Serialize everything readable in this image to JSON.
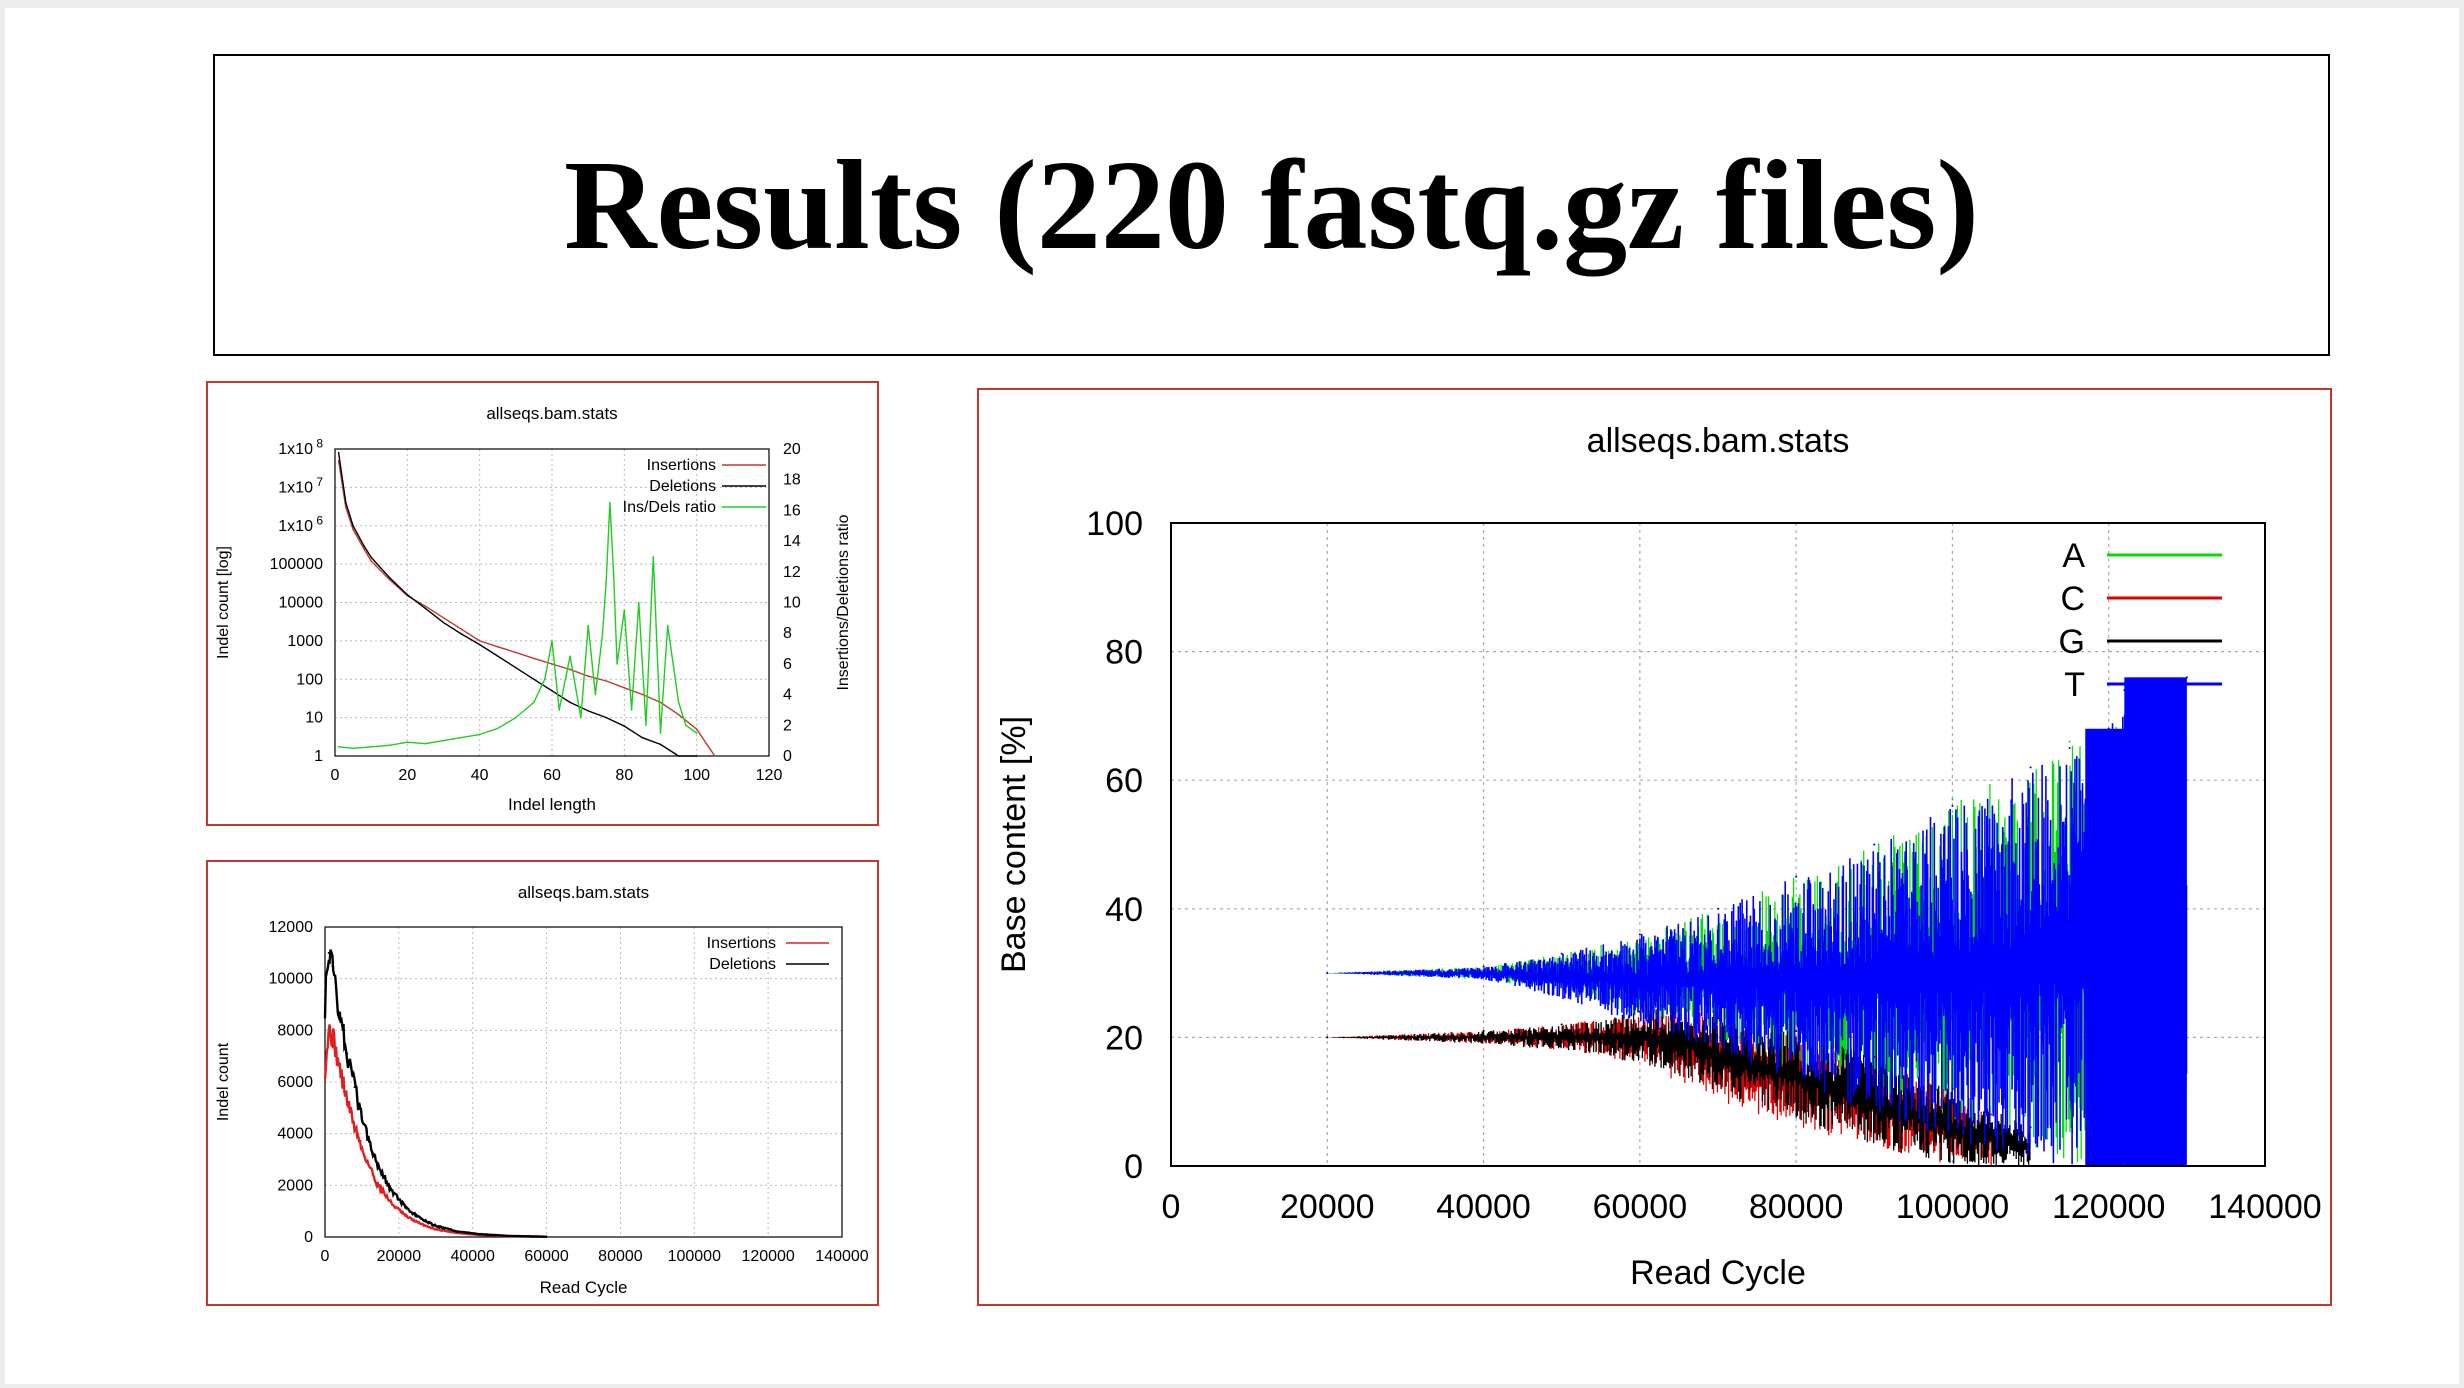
{
  "slide": {
    "title": "Results (220 fastq.gz files)"
  },
  "chart_data": [
    {
      "id": "indel-length",
      "type": "line",
      "title": "allseqs.bam.stats",
      "xlabel": "Indel length",
      "ylabel": "Indel count [log]",
      "y2label": "Insertions/Deletions ratio",
      "xlim": [
        0,
        120
      ],
      "ylim": [
        1,
        100000000
      ],
      "yscale": "log",
      "y2lim": [
        0,
        20
      ],
      "x_ticks": [
        "0",
        "20",
        "40",
        "60",
        "80",
        "100",
        "120"
      ],
      "y_ticks": [
        "1",
        "10",
        "100",
        "1000",
        "10000",
        "100000",
        "1x10^6",
        "1x10^7",
        "1x10^8"
      ],
      "y2_ticks": [
        "0",
        "2",
        "4",
        "6",
        "8",
        "10",
        "12",
        "14",
        "16",
        "18",
        "20"
      ],
      "grid": true,
      "legend_position": "top-right",
      "colors": {
        "Insertions": "#c0392b",
        "Deletions": "#000000",
        "Ins/Dels ratio": "#22cc22"
      },
      "series": [
        {
          "name": "Insertions",
          "axis": "left",
          "x": [
            1,
            3,
            5,
            8,
            10,
            15,
            20,
            25,
            30,
            35,
            40,
            45,
            50,
            55,
            60,
            65,
            70,
            75,
            80,
            85,
            90,
            95,
            100,
            105
          ],
          "values": [
            50000000,
            3000000,
            800000,
            250000,
            120000,
            40000,
            15000,
            8000,
            4000,
            2000,
            1000,
            700,
            500,
            350,
            250,
            180,
            120,
            90,
            60,
            40,
            25,
            12,
            5,
            1
          ]
        },
        {
          "name": "Deletions",
          "axis": "left",
          "x": [
            1,
            3,
            5,
            8,
            10,
            15,
            20,
            25,
            30,
            35,
            40,
            45,
            50,
            55,
            60,
            65,
            70,
            75,
            80,
            85,
            90,
            95,
            100
          ],
          "values": [
            80000000,
            4000000,
            1000000,
            300000,
            150000,
            45000,
            16000,
            7000,
            3000,
            1500,
            800,
            400,
            200,
            100,
            50,
            25,
            15,
            10,
            6,
            3,
            2,
            1,
            1
          ]
        },
        {
          "name": "Ins/Dels ratio",
          "axis": "right",
          "x": [
            1,
            5,
            10,
            15,
            20,
            25,
            30,
            35,
            40,
            45,
            50,
            55,
            58,
            60,
            62,
            65,
            68,
            70,
            72,
            74,
            75,
            76,
            77,
            78,
            80,
            82,
            84,
            86,
            88,
            90,
            92,
            95,
            97,
            100
          ],
          "values": [
            0.6,
            0.5,
            0.6,
            0.7,
            0.9,
            0.8,
            1.0,
            1.2,
            1.4,
            1.8,
            2.5,
            3.5,
            5.0,
            7.5,
            3.0,
            6.5,
            2.5,
            8.5,
            4.0,
            8.0,
            11.5,
            16.5,
            12.0,
            6.0,
            9.5,
            3.0,
            10.0,
            2.0,
            13.0,
            1.5,
            8.5,
            3.5,
            2.0,
            1.5
          ]
        }
      ]
    },
    {
      "id": "indel-read-cycle",
      "type": "line",
      "title": "allseqs.bam.stats",
      "xlabel": "Read Cycle",
      "ylabel": "Indel count",
      "xlim": [
        0,
        140000
      ],
      "ylim": [
        0,
        12000
      ],
      "x_ticks": [
        "0",
        "20000",
        "40000",
        "60000",
        "80000",
        "100000",
        "120000",
        "140000"
      ],
      "y_ticks": [
        "0",
        "2000",
        "4000",
        "6000",
        "8000",
        "10000",
        "12000"
      ],
      "grid": true,
      "legend_position": "top-right",
      "colors": {
        "Insertions": "#e02020",
        "Deletions": "#000000"
      },
      "series": [
        {
          "name": "Insertions",
          "x": [
            0,
            1000,
            2000,
            4000,
            6000,
            8000,
            10000,
            14000,
            18000,
            22000,
            26000,
            30000,
            36000,
            42000,
            50000,
            60000
          ],
          "values": [
            6500,
            8000,
            7800,
            6500,
            5300,
            4300,
            3400,
            2100,
            1300,
            800,
            500,
            300,
            150,
            80,
            30,
            10
          ]
        },
        {
          "name": "Deletions",
          "x": [
            0,
            1000,
            2000,
            4000,
            6000,
            8000,
            10000,
            14000,
            18000,
            22000,
            26000,
            30000,
            36000,
            42000,
            50000,
            60000
          ],
          "values": [
            9000,
            11000,
            10500,
            8700,
            7100,
            5800,
            4600,
            2900,
            1800,
            1100,
            700,
            430,
            210,
            110,
            40,
            10
          ]
        }
      ]
    },
    {
      "id": "base-content",
      "type": "line",
      "title": "allseqs.bam.stats",
      "xlabel": "Read Cycle",
      "ylabel": "Base content [%]",
      "xlim": [
        0,
        140000
      ],
      "ylim": [
        0,
        100
      ],
      "x_ticks": [
        "0",
        "20000",
        "40000",
        "60000",
        "80000",
        "100000",
        "120000",
        "140000"
      ],
      "y_ticks": [
        "0",
        "20",
        "40",
        "60",
        "80",
        "100"
      ],
      "grid": true,
      "legend_position": "top-right",
      "colors": {
        "A": "#00e000",
        "C": "#e00000",
        "G": "#000000",
        "T": "#0000ff"
      },
      "series": [
        {
          "name": "A",
          "x": [
            0,
            20000,
            40000,
            50000,
            60000,
            70000,
            80000,
            90000,
            100000,
            110000,
            115000,
            120000,
            125000,
            130000
          ],
          "values": [
            30,
            30,
            31,
            33,
            36,
            40,
            45,
            50,
            57,
            62,
            66,
            68,
            72,
            76
          ],
          "min": [
            30,
            30,
            29,
            27,
            23,
            19,
            14,
            9,
            5,
            2,
            0,
            0,
            0,
            0
          ]
        },
        {
          "name": "C",
          "x": [
            0,
            20000,
            40000,
            50000,
            60000,
            65000,
            70000,
            80000,
            90000,
            100000,
            105000
          ],
          "values": [
            20,
            20,
            21,
            22,
            24,
            25,
            23,
            20,
            16,
            12,
            8
          ],
          "min": [
            20,
            20,
            19,
            18,
            16,
            13,
            10,
            6,
            3,
            0,
            0
          ]
        },
        {
          "name": "G",
          "x": [
            0,
            20000,
            40000,
            50000,
            60000,
            65000,
            70000,
            80000,
            90000,
            100000,
            110000
          ],
          "values": [
            20,
            20,
            21,
            22,
            24,
            25,
            23,
            21,
            17,
            12,
            6
          ],
          "min": [
            20,
            20,
            19,
            18,
            16,
            14,
            11,
            7,
            3,
            0,
            0
          ]
        },
        {
          "name": "T",
          "x": [
            0,
            20000,
            40000,
            50000,
            60000,
            70000,
            80000,
            90000,
            100000,
            110000,
            115000,
            120000,
            122000,
            130000
          ],
          "values": [
            30,
            30,
            31,
            33,
            36,
            40,
            45,
            50,
            56,
            62,
            65,
            68,
            74,
            76
          ],
          "min": [
            30,
            30,
            29,
            26,
            22,
            18,
            13,
            8,
            4,
            1,
            0,
            0,
            0,
            0
          ]
        }
      ]
    }
  ]
}
